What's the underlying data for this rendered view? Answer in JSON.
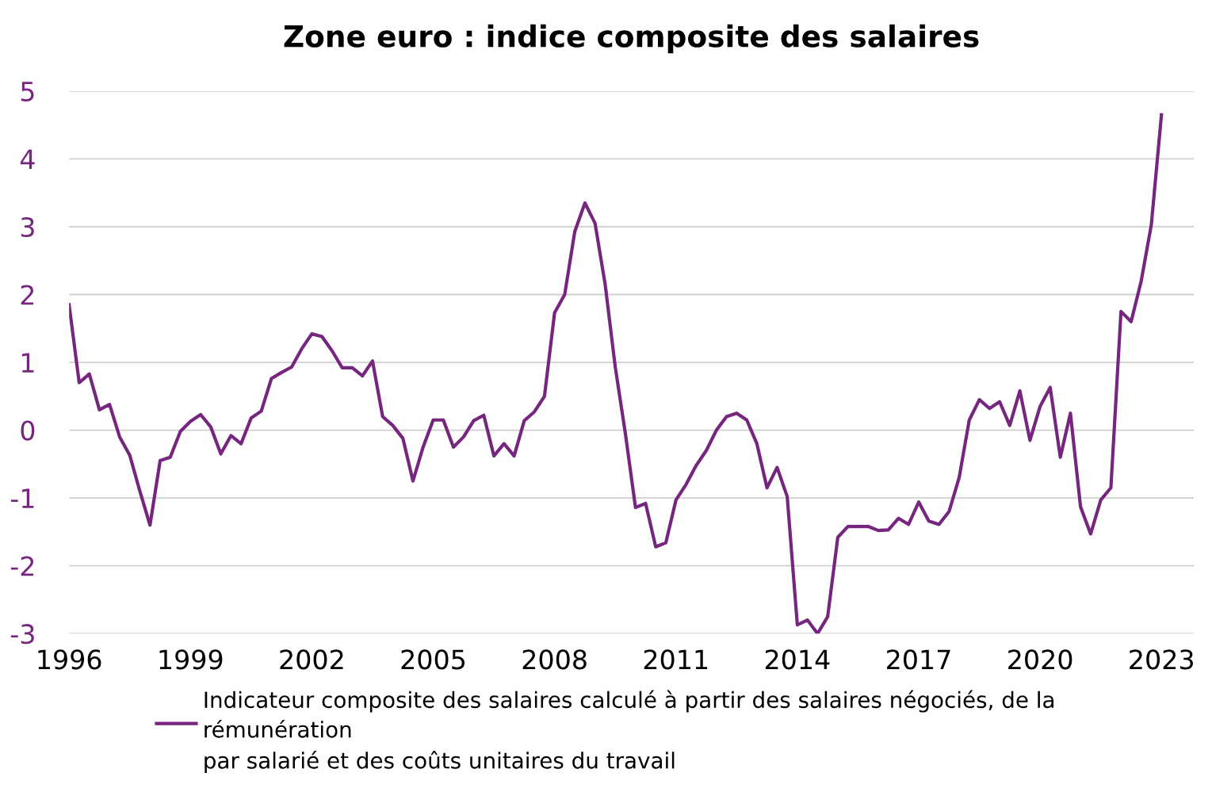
{
  "chart_data": {
    "type": "line",
    "title": "Zone euro : indice composite des salaires",
    "x": [
      1996.0,
      1996.25,
      1996.5,
      1996.75,
      1997.0,
      1997.25,
      1997.5,
      1997.75,
      1998.0,
      1998.25,
      1998.5,
      1998.75,
      1999.0,
      1999.25,
      1999.5,
      1999.75,
      2000.0,
      2000.25,
      2000.5,
      2000.75,
      2001.0,
      2001.25,
      2001.5,
      2001.75,
      2002.0,
      2002.25,
      2002.5,
      2002.75,
      2003.0,
      2003.25,
      2003.5,
      2003.75,
      2004.0,
      2004.25,
      2004.5,
      2004.75,
      2005.0,
      2005.25,
      2005.5,
      2005.75,
      2006.0,
      2006.25,
      2006.5,
      2006.75,
      2007.0,
      2007.25,
      2007.5,
      2007.75,
      2008.0,
      2008.25,
      2008.5,
      2008.75,
      2009.0,
      2009.25,
      2009.5,
      2009.75,
      2010.0,
      2010.25,
      2010.5,
      2010.75,
      2011.0,
      2011.25,
      2011.5,
      2011.75,
      2012.0,
      2012.25,
      2012.5,
      2012.75,
      2013.0,
      2013.25,
      2013.5,
      2013.75,
      2014.0,
      2014.25,
      2014.5,
      2014.75,
      2015.0,
      2015.25,
      2015.5,
      2015.75,
      2016.0,
      2016.25,
      2016.5,
      2016.75,
      2017.0,
      2017.25,
      2017.5,
      2017.75,
      2018.0,
      2018.25,
      2018.5,
      2018.75,
      2019.0,
      2019.25,
      2019.5,
      2019.75,
      2020.0,
      2020.25,
      2020.5,
      2020.75,
      2021.0,
      2021.25,
      2021.5,
      2021.75,
      2022.0,
      2022.25,
      2022.5,
      2022.75,
      2023.0
    ],
    "series": [
      {
        "name": "Indicateur composite des salaires calculé à partir des salaires négociés, de la rémunération par salarié et des coûts unitaires du travail",
        "color": "#76267f",
        "values": [
          1.85,
          0.7,
          0.83,
          0.3,
          0.38,
          -0.1,
          -0.37,
          -0.9,
          -1.4,
          -0.45,
          -0.4,
          -0.02,
          0.13,
          0.23,
          0.05,
          -0.35,
          -0.08,
          -0.2,
          0.18,
          0.28,
          0.76,
          0.85,
          0.93,
          1.2,
          1.42,
          1.38,
          1.17,
          0.92,
          0.92,
          0.8,
          1.02,
          0.2,
          0.07,
          -0.12,
          -0.75,
          -0.25,
          0.15,
          0.15,
          -0.25,
          -0.1,
          0.14,
          0.22,
          -0.38,
          -0.2,
          -0.38,
          0.14,
          0.27,
          0.5,
          1.73,
          2.0,
          2.93,
          3.35,
          3.05,
          2.15,
          0.93,
          -0.05,
          -1.14,
          -1.08,
          -1.72,
          -1.66,
          -1.03,
          -0.8,
          -0.52,
          -0.3,
          0.0,
          0.2,
          0.25,
          0.15,
          -0.2,
          -0.85,
          -0.55,
          -0.98,
          -2.87,
          -2.8,
          -3.0,
          -2.75,
          -1.58,
          -1.42,
          -1.42,
          -1.42,
          -1.48,
          -1.47,
          -1.3,
          -1.39,
          -1.06,
          -1.34,
          -1.39,
          -1.2,
          -0.7,
          0.15,
          0.45,
          0.32,
          0.42,
          0.07,
          0.58,
          -0.15,
          0.35,
          0.63,
          -0.4,
          0.25,
          -1.13,
          -1.53,
          -1.03,
          -0.85,
          1.75,
          1.6,
          2.2,
          3.03,
          4.65
        ]
      }
    ],
    "xlim": [
      1996,
      2023.8
    ],
    "xticks": [
      1996,
      1999,
      2002,
      2005,
      2008,
      2011,
      2014,
      2017,
      2020,
      2023
    ],
    "ylim": [
      -3,
      5
    ],
    "yticks": [
      -3,
      -2,
      -1,
      0,
      1,
      2,
      3,
      4,
      5
    ],
    "grid": "y",
    "legend": "bottom",
    "marker": "none",
    "line_style": "solid"
  }
}
